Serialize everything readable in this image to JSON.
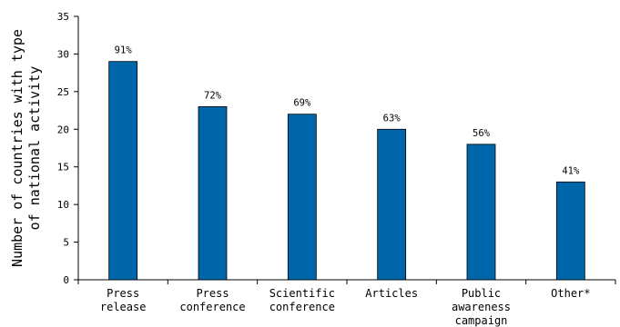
{
  "chart_data": {
    "type": "bar",
    "categories": [
      [
        "Press",
        "release"
      ],
      [
        "Press",
        "conference"
      ],
      [
        "Scientific",
        "conference"
      ],
      [
        "Articles"
      ],
      [
        "Public",
        "awareness",
        "campaign"
      ],
      [
        "Other*"
      ]
    ],
    "values": [
      29,
      23,
      22,
      20,
      18,
      13
    ],
    "data_labels": [
      "91%",
      "72%",
      "69%",
      "63%",
      "56%",
      "41%"
    ],
    "ylabel": [
      "Number of countries with type",
      "of national activity"
    ],
    "ylim": [
      0,
      35
    ],
    "yticks": [
      0,
      5,
      10,
      15,
      20,
      25,
      30,
      35
    ],
    "grid": false,
    "bar_color": "#0066aa"
  }
}
